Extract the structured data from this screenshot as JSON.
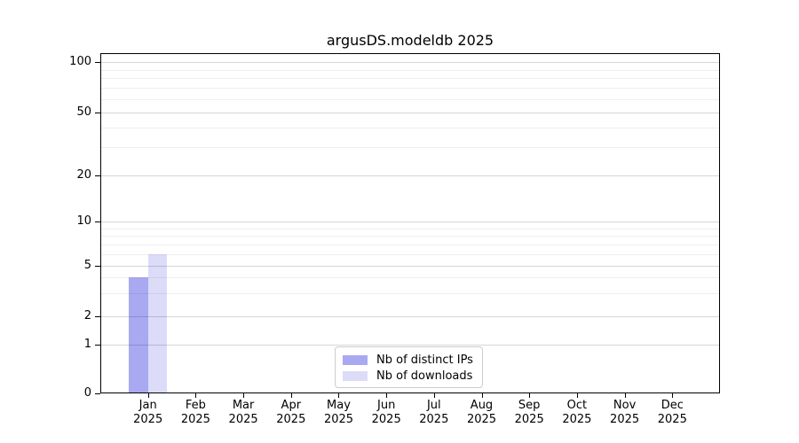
{
  "chart_data": {
    "type": "bar",
    "title": "argusDS.modeldb 2025",
    "categories": [
      "Jan 2025",
      "Feb 2025",
      "Mar 2025",
      "Apr 2025",
      "May 2025",
      "Jun 2025",
      "Jul 2025",
      "Aug 2025",
      "Sep 2025",
      "Oct 2025",
      "Nov 2025",
      "Dec 2025"
    ],
    "series": [
      {
        "name": "Nb of distinct IPs",
        "color": "#a9a9f2",
        "values": [
          4,
          0,
          0,
          0,
          0,
          0,
          0,
          0,
          0,
          0,
          0,
          0
        ]
      },
      {
        "name": "Nb of downloads",
        "color": "#dcdcf9",
        "values": [
          6,
          0,
          0,
          0,
          0,
          0,
          0,
          0,
          0,
          0,
          0,
          0
        ]
      }
    ],
    "xlabel": "",
    "ylabel": "",
    "yscale": "symlog",
    "ylim": [
      0,
      100
    ],
    "y_major_ticks": [
      0,
      1,
      2,
      5,
      10,
      20,
      50,
      100
    ],
    "y_minor_ticks": [
      3,
      4,
      6,
      7,
      8,
      9,
      30,
      40,
      60,
      70,
      80,
      90
    ],
    "grid": true,
    "grid_above_bars": true,
    "bar_width_units": 0.4,
    "legend_position": "lower center",
    "colors": {
      "background": "#ffffff",
      "frame": "#000000",
      "major_grid": "#d6d6d6",
      "minor_grid": "#ededed",
      "legend_border": "#cccccc",
      "text": "#000000"
    }
  }
}
